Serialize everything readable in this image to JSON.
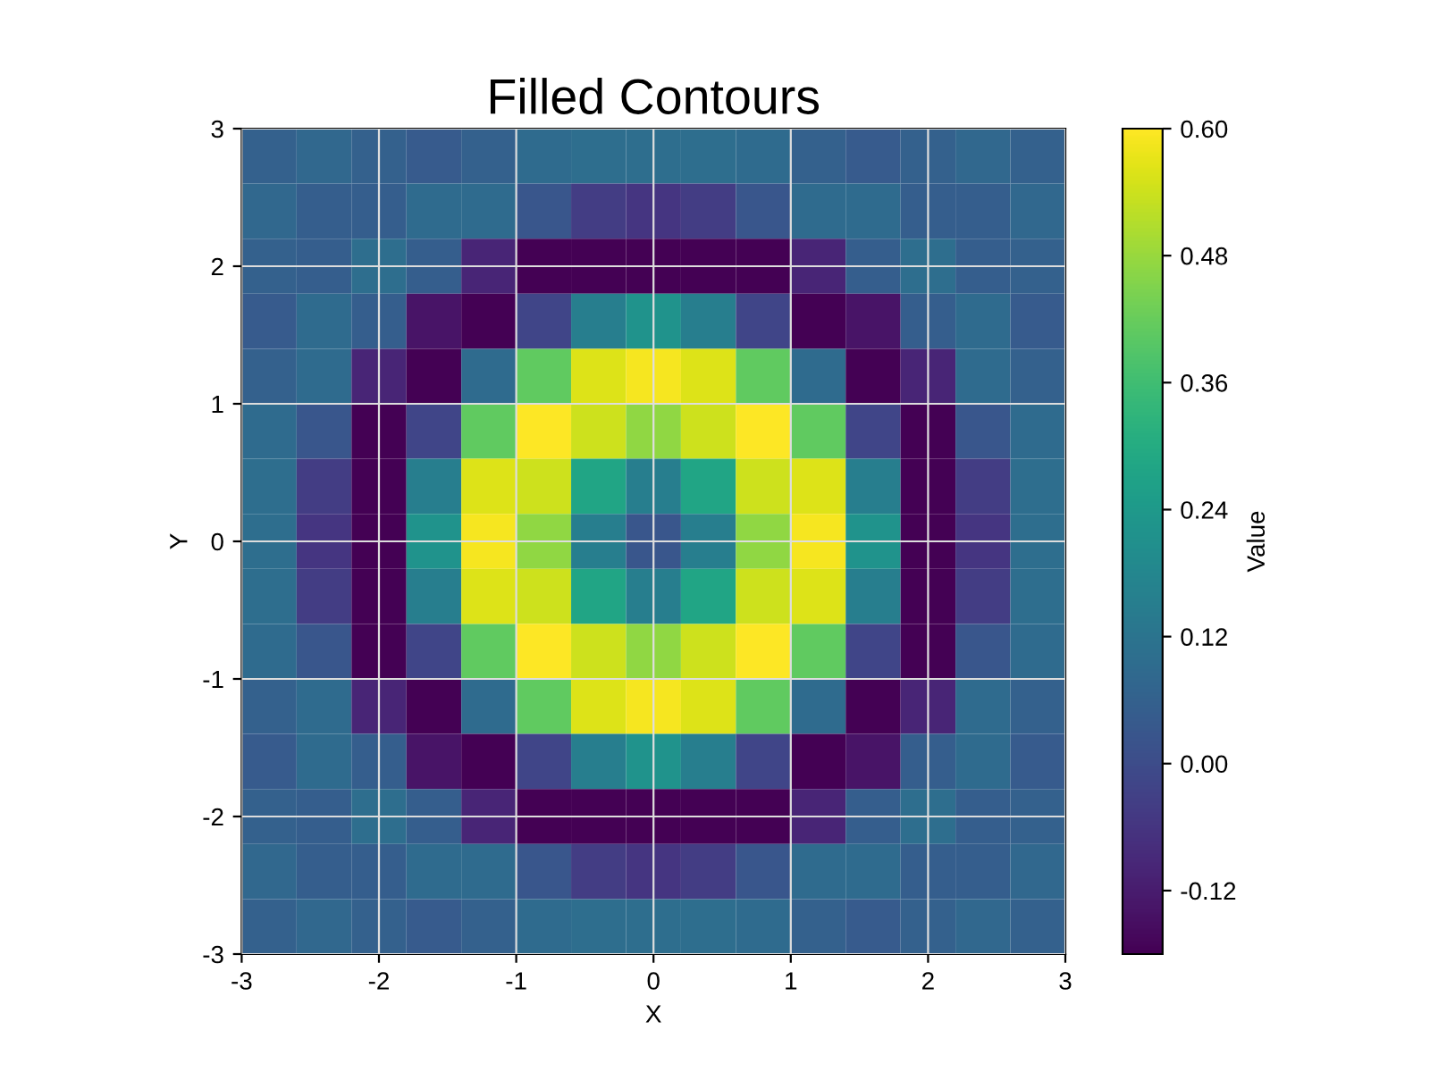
{
  "chart_data": {
    "type": "heatmap",
    "title": "Filled Contours",
    "xlabel": "X",
    "ylabel": "Y",
    "clabel": "Value",
    "xlim": [
      -3,
      3
    ],
    "ylim": [
      -3,
      3
    ],
    "xticks": [
      -3,
      -2,
      -1,
      0,
      1,
      2,
      3
    ],
    "yticks": [
      -3,
      -2,
      -1,
      0,
      1,
      2,
      3
    ],
    "clim": [
      -0.18,
      0.6
    ],
    "cticks": [
      {
        "value": -0.12,
        "label": "-0.12"
      },
      {
        "value": 0.0,
        "label": "0.00"
      },
      {
        "value": 0.12,
        "label": "0.12"
      },
      {
        "value": 0.24,
        "label": "0.24"
      },
      {
        "value": 0.36,
        "label": "0.36"
      },
      {
        "value": 0.48,
        "label": "0.48"
      },
      {
        "value": 0.6,
        "label": "0.60"
      }
    ],
    "grid": true,
    "cells": [
      [
        0.06,
        0.08,
        0.06,
        0.04,
        0.06,
        0.09,
        0.1,
        0.1,
        0.1,
        0.09,
        0.06,
        0.04,
        0.06,
        0.08,
        0.06
      ],
      [
        0.08,
        0.05,
        0.05,
        0.09,
        0.09,
        0.03,
        -0.04,
        -0.06,
        -0.04,
        0.03,
        0.09,
        0.09,
        0.05,
        0.05,
        0.08
      ],
      [
        0.06,
        0.05,
        0.1,
        0.05,
        -0.1,
        -0.18,
        -0.18,
        -0.18,
        -0.18,
        -0.18,
        -0.1,
        0.05,
        0.1,
        0.05,
        0.06
      ],
      [
        0.04,
        0.09,
        0.05,
        -0.14,
        -0.18,
        -0.02,
        0.15,
        0.22,
        0.15,
        -0.02,
        -0.18,
        -0.14,
        0.05,
        0.09,
        0.04
      ],
      [
        0.06,
        0.09,
        -0.1,
        -0.18,
        0.09,
        0.41,
        0.56,
        0.59,
        0.56,
        0.41,
        0.09,
        -0.18,
        -0.1,
        0.09,
        0.06
      ],
      [
        0.09,
        0.03,
        -0.18,
        -0.02,
        0.41,
        0.6,
        0.54,
        0.47,
        0.54,
        0.6,
        0.41,
        -0.02,
        -0.18,
        0.03,
        0.09
      ],
      [
        0.1,
        -0.04,
        -0.18,
        0.15,
        0.56,
        0.54,
        0.28,
        0.15,
        0.28,
        0.54,
        0.56,
        0.15,
        -0.18,
        -0.04,
        0.1
      ],
      [
        0.1,
        -0.06,
        -0.18,
        0.22,
        0.59,
        0.47,
        0.15,
        0.03,
        0.15,
        0.47,
        0.59,
        0.22,
        -0.18,
        -0.06,
        0.1
      ],
      [
        0.1,
        -0.04,
        -0.18,
        0.15,
        0.56,
        0.54,
        0.28,
        0.15,
        0.28,
        0.54,
        0.56,
        0.15,
        -0.18,
        -0.04,
        0.1
      ],
      [
        0.09,
        0.03,
        -0.18,
        -0.02,
        0.41,
        0.6,
        0.54,
        0.47,
        0.54,
        0.6,
        0.41,
        -0.02,
        -0.18,
        0.03,
        0.09
      ],
      [
        0.06,
        0.09,
        -0.1,
        -0.18,
        0.09,
        0.41,
        0.56,
        0.59,
        0.56,
        0.41,
        0.09,
        -0.18,
        -0.1,
        0.09,
        0.06
      ],
      [
        0.04,
        0.09,
        0.05,
        -0.14,
        -0.18,
        -0.02,
        0.15,
        0.22,
        0.15,
        -0.02,
        -0.18,
        -0.14,
        0.05,
        0.09,
        0.04
      ],
      [
        0.06,
        0.05,
        0.1,
        0.05,
        -0.1,
        -0.18,
        -0.18,
        -0.18,
        -0.18,
        -0.18,
        -0.1,
        0.05,
        0.1,
        0.05,
        0.06
      ],
      [
        0.08,
        0.05,
        0.05,
        0.09,
        0.09,
        0.03,
        -0.04,
        -0.06,
        -0.04,
        0.03,
        0.09,
        0.09,
        0.05,
        0.05,
        0.08
      ],
      [
        0.06,
        0.08,
        0.06,
        0.04,
        0.06,
        0.09,
        0.1,
        0.1,
        0.1,
        0.09,
        0.06,
        0.04,
        0.06,
        0.08,
        0.06
      ]
    ]
  }
}
